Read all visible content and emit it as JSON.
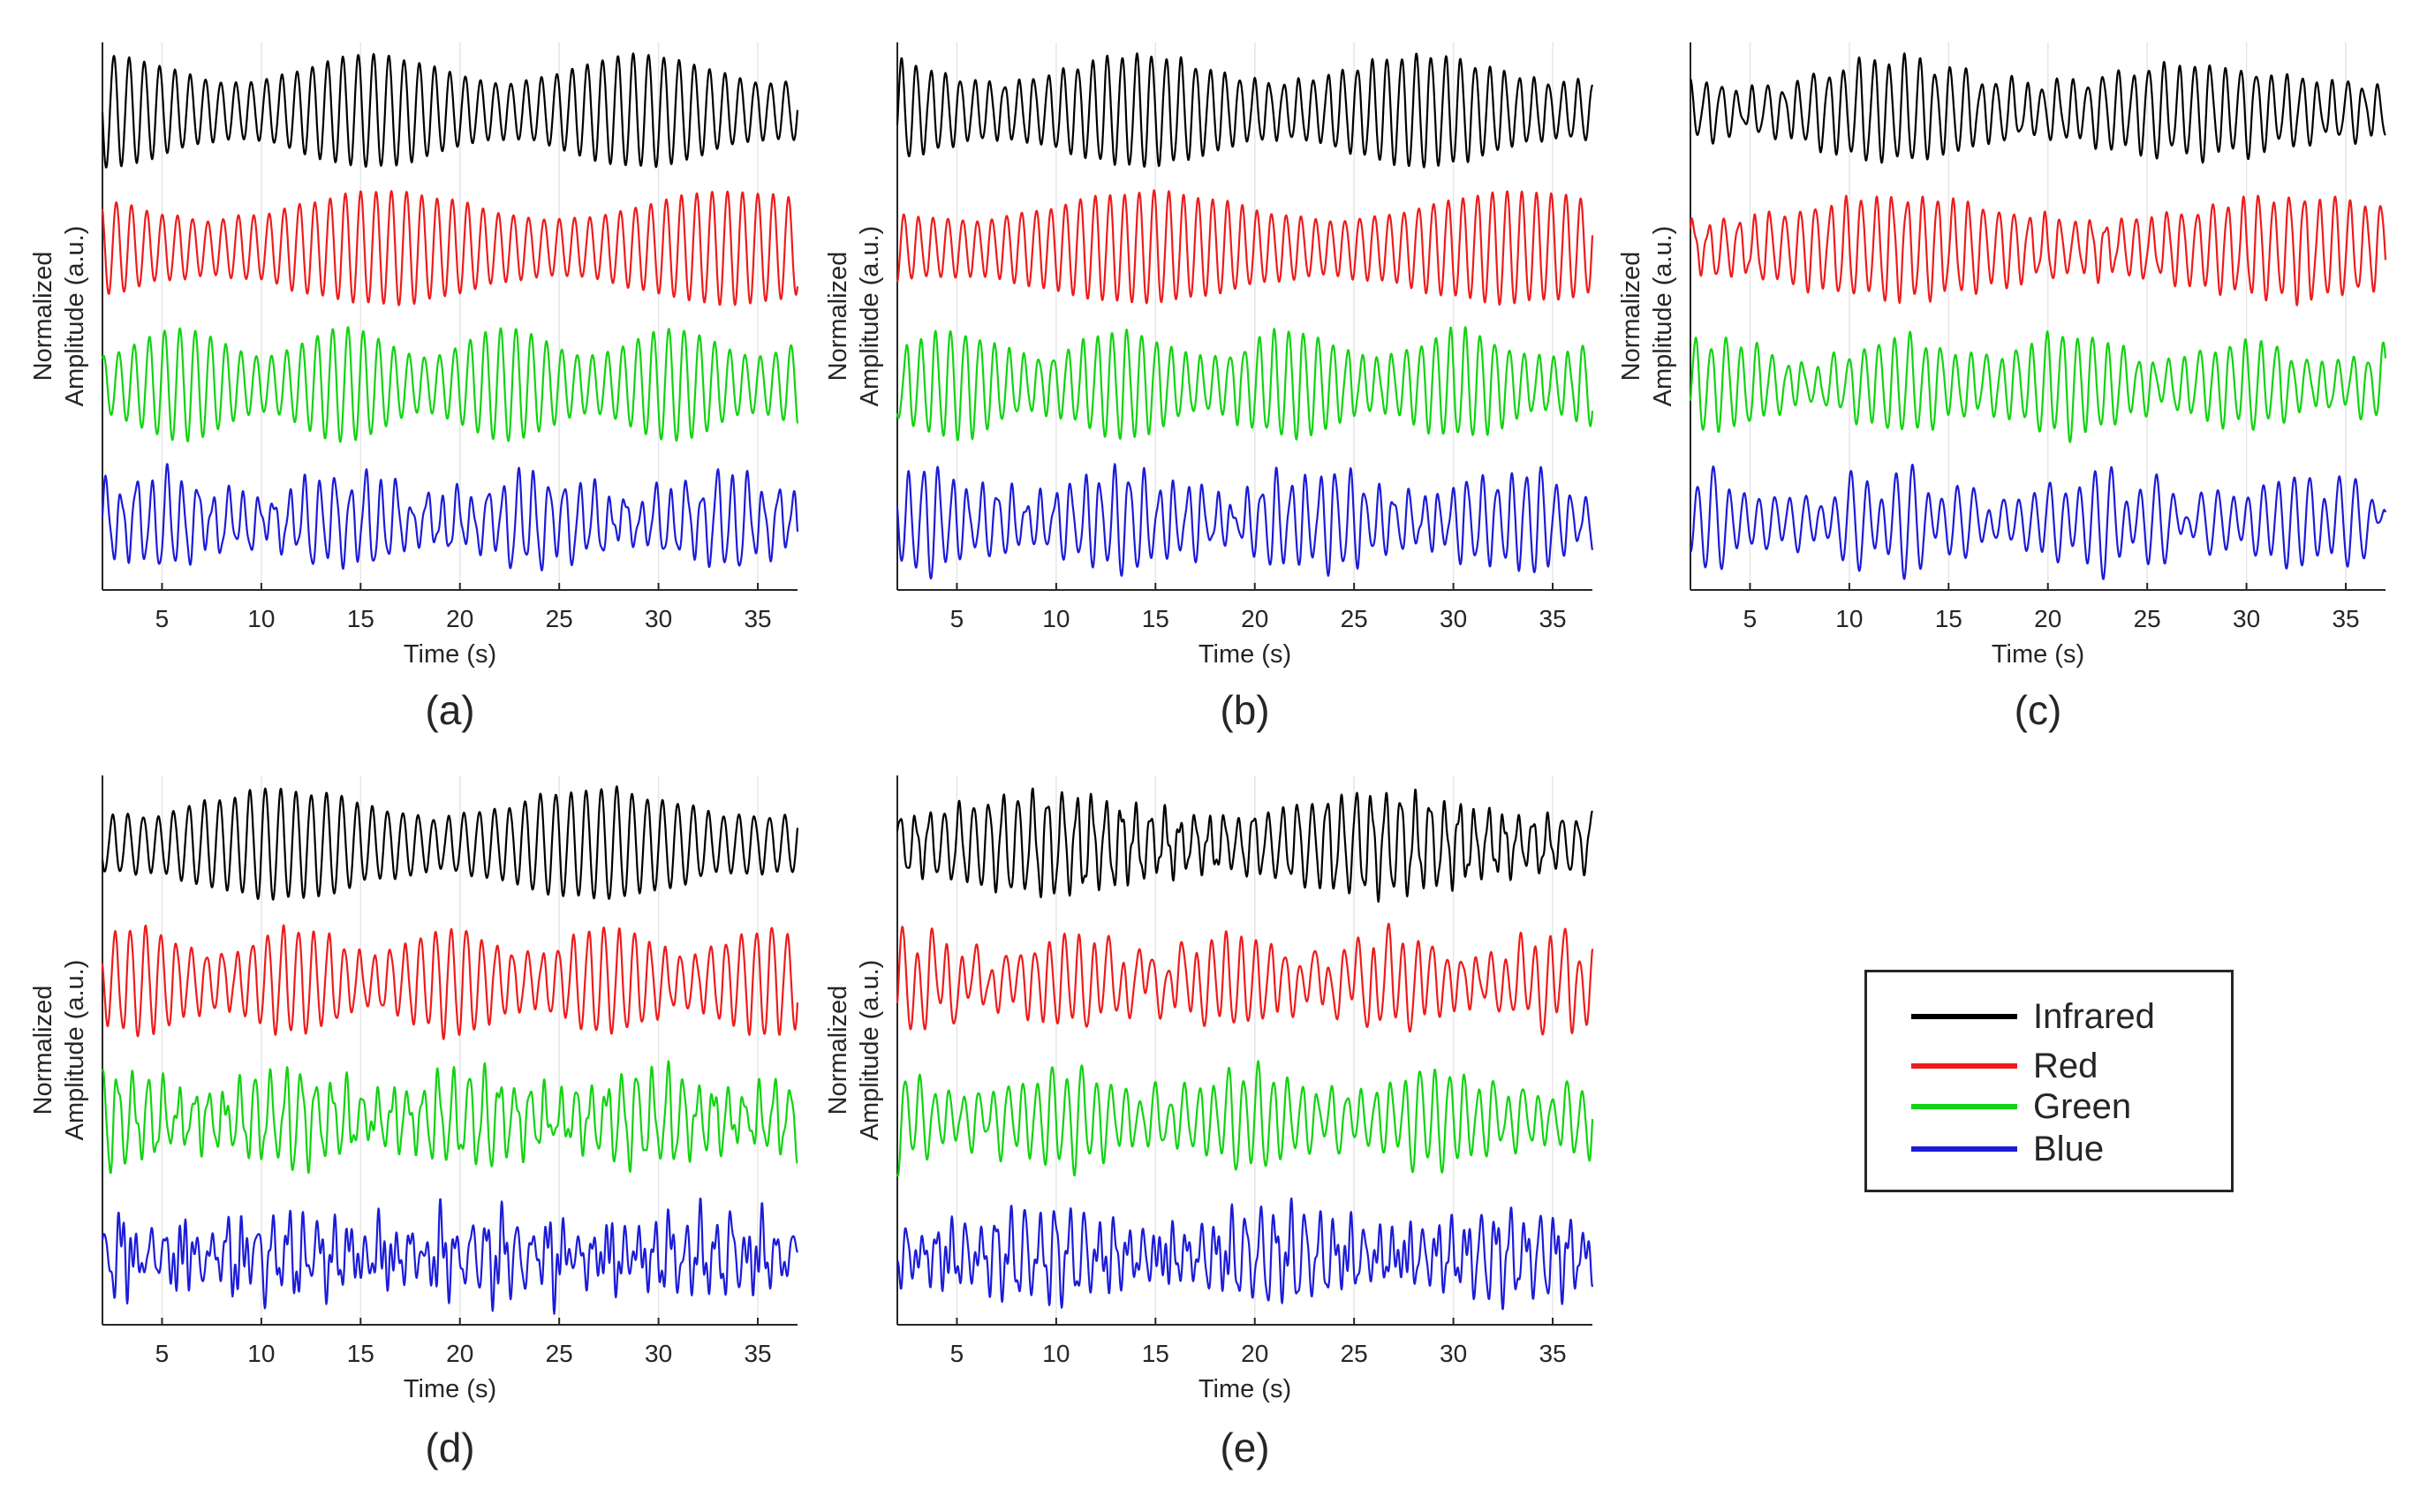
{
  "figure": {
    "panel_labels": [
      "(a)",
      "(b)",
      "(c)",
      "(d)",
      "(e)"
    ]
  },
  "colors": {
    "Infrared": "#000000",
    "Red": "#ee1c1c",
    "Green": "#12d312",
    "Blue": "#1c1cd8",
    "axis": "#262626"
  },
  "legend": {
    "items": [
      {
        "label": "Infrared",
        "color": "#000000"
      },
      {
        "label": "Red",
        "color": "#ee1c1c"
      },
      {
        "label": "Green",
        "color": "#12d312"
      },
      {
        "label": "Blue",
        "color": "#1c1cd8"
      }
    ]
  },
  "chart_data": [
    {
      "panel": "(a)",
      "type": "line",
      "xlabel": "Time (s)",
      "ylabel": [
        "Normalized",
        "Amplitude (a.u.)"
      ],
      "xlim": [
        2,
        37
      ],
      "xticks": [
        5,
        10,
        15,
        20,
        25,
        30,
        35
      ],
      "series": [
        {
          "name": "Infrared",
          "freq": 1.3,
          "noise": 0.05,
          "seed": 11
        },
        {
          "name": "Red",
          "freq": 1.3,
          "noise": 0.06,
          "seed": 12
        },
        {
          "name": "Green",
          "freq": 1.3,
          "noise": 0.08,
          "seed": 13
        },
        {
          "name": "Blue",
          "freq": 1.3,
          "noise": 0.55,
          "seed": 14
        }
      ]
    },
    {
      "panel": "(b)",
      "type": "line",
      "xlabel": "Time (s)",
      "ylabel": [
        "Normalized",
        "Amplitude (a.u.)"
      ],
      "xlim": [
        2,
        37
      ],
      "xticks": [
        5,
        10,
        15,
        20,
        25,
        30,
        35
      ],
      "series": [
        {
          "name": "Infrared",
          "freq": 1.35,
          "noise": 0.12,
          "seed": 21
        },
        {
          "name": "Red",
          "freq": 1.35,
          "noise": 0.1,
          "seed": 22
        },
        {
          "name": "Green",
          "freq": 1.35,
          "noise": 0.15,
          "seed": 23
        },
        {
          "name": "Blue",
          "freq": 1.35,
          "noise": 0.8,
          "seed": 24
        }
      ]
    },
    {
      "panel": "(c)",
      "type": "line",
      "xlabel": "Time (s)",
      "ylabel": [
        "Normalized",
        "Amplitude (a.u.)"
      ],
      "xlim": [
        2,
        37
      ],
      "xticks": [
        5,
        10,
        15,
        20,
        25,
        30,
        35
      ],
      "series": [
        {
          "name": "Infrared",
          "freq": 1.3,
          "noise": 0.3,
          "seed": 31
        },
        {
          "name": "Red",
          "freq": 1.3,
          "noise": 0.2,
          "seed": 32
        },
        {
          "name": "Green",
          "freq": 1.3,
          "noise": 0.3,
          "seed": 33
        },
        {
          "name": "Blue",
          "freq": 1.3,
          "noise": 0.6,
          "seed": 34
        }
      ]
    },
    {
      "panel": "(d)",
      "type": "line",
      "xlabel": "Time (s)",
      "ylabel": [
        "Normalized",
        "Amplitude (a.u.)"
      ],
      "xlim": [
        2,
        37
      ],
      "xticks": [
        5,
        10,
        15,
        20,
        25,
        30,
        35
      ],
      "series": [
        {
          "name": "Infrared",
          "freq": 1.3,
          "noise": 0.15,
          "seed": 41
        },
        {
          "name": "Red",
          "freq": 1.3,
          "noise": 0.15,
          "seed": 42
        },
        {
          "name": "Green",
          "freq": 1.3,
          "noise": 0.6,
          "seed": 43
        },
        {
          "name": "Blue",
          "freq": 1.3,
          "noise": 0.9,
          "seed": 44
        }
      ]
    },
    {
      "panel": "(e)",
      "type": "line",
      "xlabel": "Time (s)",
      "ylabel": [
        "Normalized",
        "Amplitude (a.u.)"
      ],
      "xlim": [
        2,
        37
      ],
      "xticks": [
        5,
        10,
        15,
        20,
        25,
        30,
        35
      ],
      "series": [
        {
          "name": "Infrared",
          "freq": 1.35,
          "noise": 0.4,
          "seed": 51
        },
        {
          "name": "Red",
          "freq": 1.35,
          "noise": 0.5,
          "seed": 52
        },
        {
          "name": "Green",
          "freq": 1.35,
          "noise": 0.6,
          "seed": 53
        },
        {
          "name": "Blue",
          "freq": 1.35,
          "noise": 0.8,
          "seed": 54
        }
      ]
    }
  ]
}
